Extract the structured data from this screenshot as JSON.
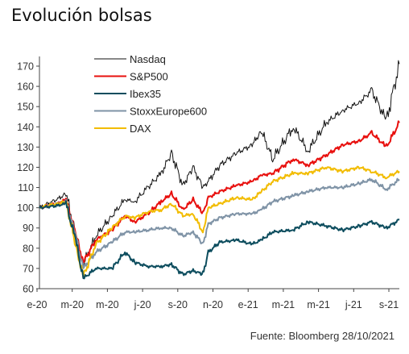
{
  "title": "Evolución bolsas",
  "source": "Fuente: Bloomberg 28/10/2021",
  "chart_data": {
    "type": "line",
    "title": "Evolución bolsas",
    "xlabel": "",
    "ylabel": "",
    "ylim": [
      60,
      175
    ],
    "yticks": [
      60,
      70,
      80,
      90,
      100,
      110,
      120,
      130,
      140,
      150,
      160,
      170
    ],
    "xticks": [
      "e-20",
      "m-20",
      "m-20",
      "j-20",
      "s-20",
      "n-20",
      "e-21",
      "m-21",
      "m-21",
      "j-21",
      "s-21"
    ],
    "grid": false,
    "legend_position": "top-center",
    "x": [
      "2020-01-02",
      "2020-02-03",
      "2020-02-20",
      "2020-03-09",
      "2020-03-23",
      "2020-04-15",
      "2020-05-15",
      "2020-06-08",
      "2020-06-26",
      "2020-07-20",
      "2020-08-14",
      "2020-09-02",
      "2020-09-23",
      "2020-10-12",
      "2020-10-30",
      "2020-11-09",
      "2020-11-30",
      "2020-12-31",
      "2021-01-29",
      "2021-02-15",
      "2021-03-08",
      "2021-04-15",
      "2021-05-12",
      "2021-06-15",
      "2021-07-15",
      "2021-08-15",
      "2021-09-07",
      "2021-10-04",
      "2021-10-28"
    ],
    "series": [
      {
        "name": "Nasdaq",
        "color": "#111111",
        "values": [
          100,
          104,
          107,
          87,
          72,
          86,
          96,
          104,
          103,
          110,
          117,
          127,
          111,
          120,
          110,
          113,
          121,
          127,
          131,
          138,
          124,
          140,
          128,
          142,
          148,
          152,
          158,
          143,
          171
        ]
      },
      {
        "name": "S&P500",
        "color": "#e8100e",
        "values": [
          100,
          102,
          104,
          87,
          73,
          84,
          89,
          96,
          93,
          97,
          103,
          107,
          99,
          104,
          97,
          105,
          108,
          111,
          113,
          116,
          117,
          124,
          121,
          126,
          131,
          133,
          137,
          130,
          142
        ]
      },
      {
        "name": "Ibex35",
        "color": "#0d4d5e",
        "values": [
          100,
          101,
          102,
          84,
          65,
          70,
          70,
          78,
          73,
          71,
          71,
          72,
          67,
          69,
          67,
          78,
          83,
          84,
          82,
          84,
          88,
          89,
          93,
          91,
          89,
          91,
          93,
          90,
          94
        ]
      },
      {
        "name": "StoxxEurope600",
        "color": "#7f93a6",
        "values": [
          100,
          102,
          103,
          86,
          70,
          78,
          83,
          88,
          88,
          89,
          90,
          90,
          86,
          88,
          82,
          92,
          95,
          97,
          97,
          99,
          103,
          106,
          108,
          110,
          110,
          112,
          114,
          109,
          114
        ]
      },
      {
        "name": "DAX",
        "color": "#f2bc00",
        "values": [
          100,
          102,
          103,
          81,
          66,
          82,
          90,
          96,
          95,
          98,
          99,
          102,
          96,
          97,
          88,
          100,
          102,
          105,
          104,
          108,
          113,
          117,
          117,
          120,
          118,
          120,
          118,
          115,
          118
        ]
      }
    ]
  }
}
